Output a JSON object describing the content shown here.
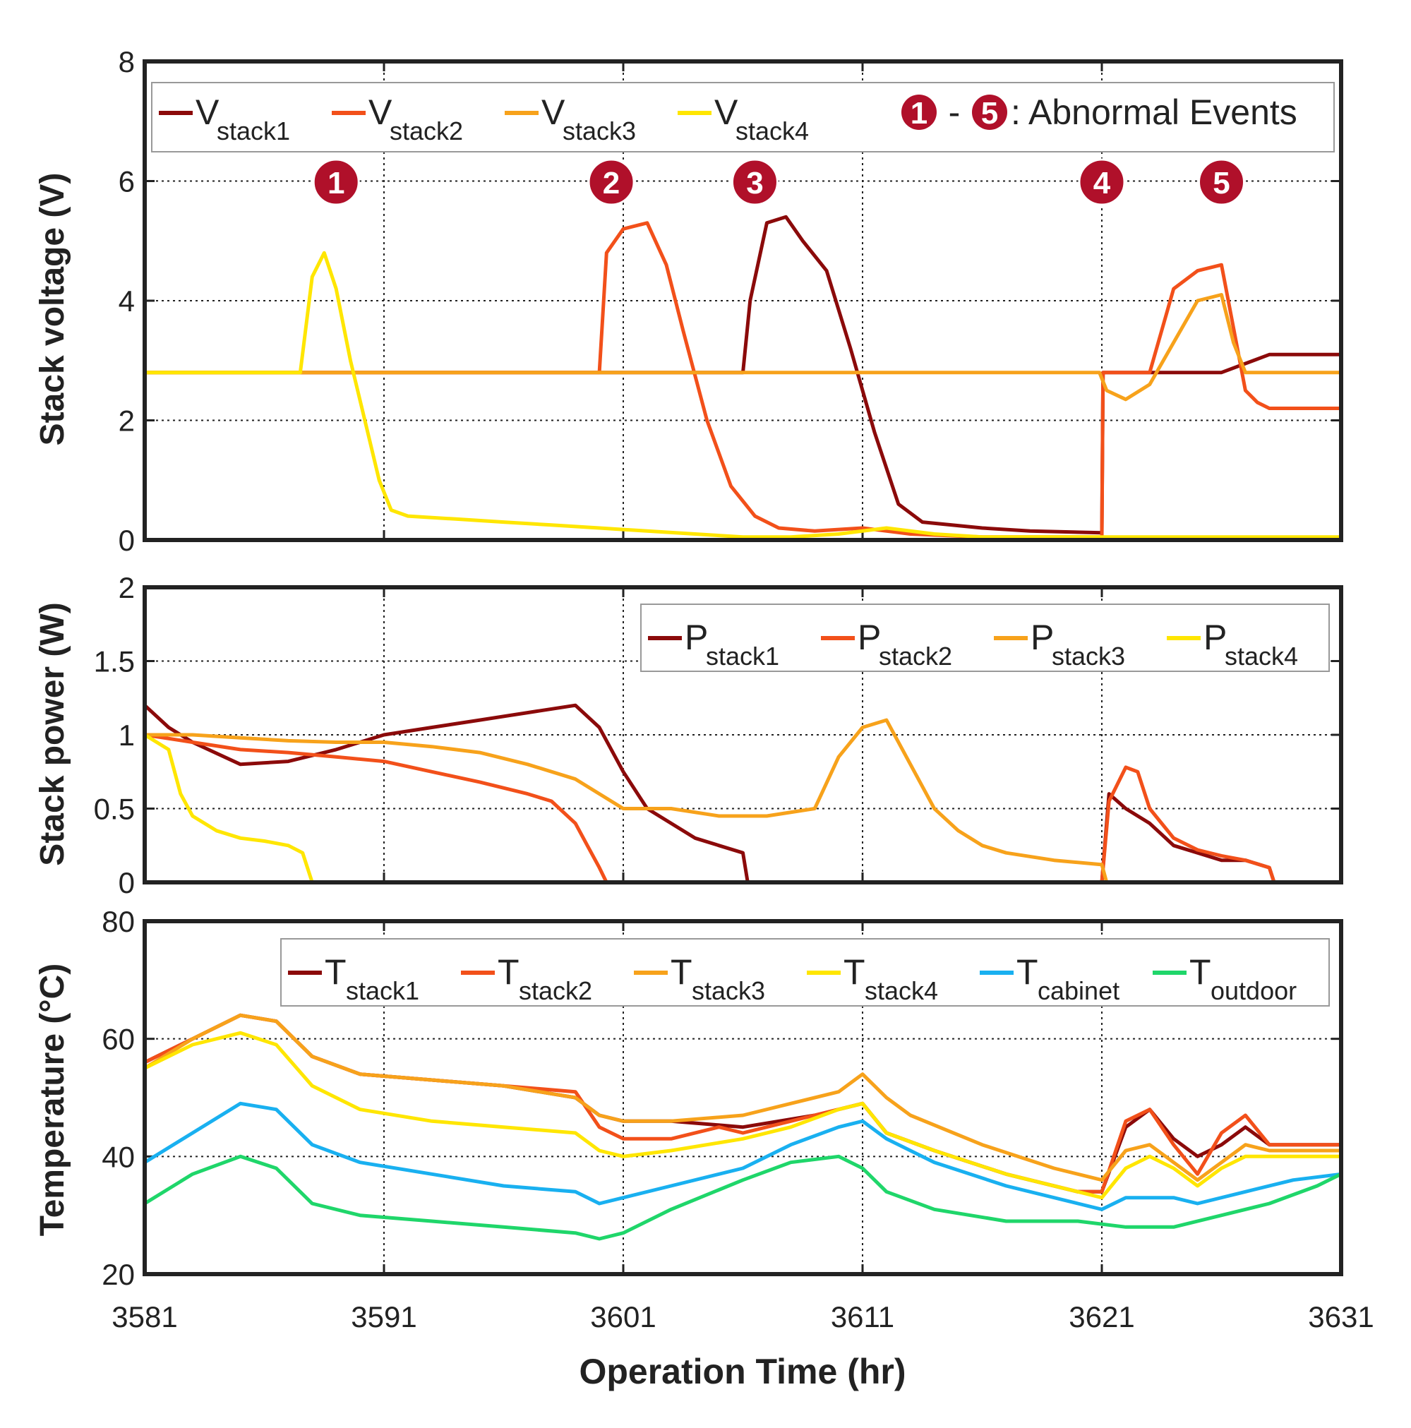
{
  "x_axis": {
    "label": "Operation Time (hr)",
    "range": [
      3581,
      3631
    ],
    "ticks": [
      "3581",
      "3591",
      "3601",
      "3611",
      "3621",
      "3631"
    ]
  },
  "colors": {
    "stack1": "#8b0a0a",
    "stack2": "#f2501a",
    "stack3": "#f7a21b",
    "stack4": "#ffe600",
    "cabinet": "#19b0f0",
    "outdoor": "#1fd66a",
    "event_badge": "#b0102a"
  },
  "events": {
    "legend_from": "1",
    "legend_dash": "-",
    "legend_to": "5",
    "legend_text": ": Abnormal Events",
    "items": [
      {
        "label": "1",
        "time": 3589
      },
      {
        "label": "2",
        "time": 3600.5
      },
      {
        "label": "3",
        "time": 3606.5
      },
      {
        "label": "4",
        "time": 3621
      },
      {
        "label": "5",
        "time": 3626
      }
    ]
  },
  "chart_data": [
    {
      "type": "line",
      "ylabel": "Stack voltage (V)",
      "ylim": [
        0,
        8
      ],
      "yticks": [
        "0",
        "2",
        "4",
        "6",
        "8"
      ],
      "legend": [
        {
          "main": "V",
          "sub": "stack1"
        },
        {
          "main": "V",
          "sub": "stack2"
        },
        {
          "main": "V",
          "sub": "stack3"
        },
        {
          "main": "V",
          "sub": "stack4"
        }
      ],
      "series": [
        {
          "name": "Vstack1",
          "color_key": "stack1",
          "x": [
            3581,
            3600,
            3606,
            3606.3,
            3607,
            3607.8,
            3608.5,
            3609.5,
            3610.5,
            3611.5,
            3612.5,
            3613.5,
            3616,
            3618,
            3621,
            3621.05,
            3626,
            3628,
            3628.1,
            3631
          ],
          "y": [
            2.8,
            2.8,
            2.8,
            4.0,
            5.3,
            5.4,
            5.0,
            4.5,
            3.2,
            1.8,
            0.6,
            0.3,
            0.2,
            0.15,
            0.12,
            2.8,
            2.8,
            3.1,
            3.1,
            3.1
          ]
        },
        {
          "name": "Vstack2",
          "color_key": "stack2",
          "x": [
            3581,
            3600,
            3600.3,
            3601,
            3602,
            3602.8,
            3603.5,
            3604.5,
            3605.5,
            3606.5,
            3607.5,
            3609,
            3611,
            3613,
            3616,
            3620.9,
            3621,
            3621.05,
            3622,
            3623,
            3624,
            3625,
            3626,
            3627,
            3627.5,
            3628,
            3628.2,
            3631
          ],
          "y": [
            2.8,
            2.8,
            4.8,
            5.2,
            5.3,
            4.6,
            3.5,
            2.0,
            0.9,
            0.4,
            0.2,
            0.15,
            0.2,
            0.1,
            0.05,
            0.05,
            0.0,
            2.8,
            2.8,
            2.8,
            4.2,
            4.5,
            4.6,
            2.5,
            2.3,
            2.2,
            2.2,
            2.2
          ]
        },
        {
          "name": "Vstack3",
          "color_key": "stack3",
          "x": [
            3581,
            3620.9,
            3621.2,
            3622,
            3623,
            3624,
            3625,
            3626,
            3626.5,
            3627,
            3628,
            3631
          ],
          "y": [
            2.8,
            2.8,
            2.5,
            2.35,
            2.6,
            3.3,
            4.0,
            4.1,
            3.3,
            2.8,
            2.8,
            2.8
          ]
        },
        {
          "name": "Vstack4",
          "color_key": "stack4",
          "x": [
            3581,
            3587.5,
            3588,
            3588.5,
            3589,
            3589.6,
            3590.2,
            3590.8,
            3591.3,
            3592,
            3594,
            3596,
            3598,
            3600,
            3602,
            3604,
            3606,
            3608,
            3610,
            3612,
            3614,
            3616,
            3631
          ],
          "y": [
            2.8,
            2.8,
            4.4,
            4.8,
            4.2,
            3.0,
            2.0,
            1.0,
            0.5,
            0.4,
            0.35,
            0.3,
            0.25,
            0.2,
            0.15,
            0.1,
            0.05,
            0.05,
            0.1,
            0.2,
            0.1,
            0.05,
            0.05
          ]
        }
      ]
    },
    {
      "type": "line",
      "ylabel": "Stack power (W)",
      "ylim": [
        0,
        2
      ],
      "yticks": [
        "0",
        "0.5",
        "1",
        "1.5",
        "2"
      ],
      "legend": [
        {
          "main": "P",
          "sub": "stack1"
        },
        {
          "main": "P",
          "sub": "stack2"
        },
        {
          "main": "P",
          "sub": "stack3"
        },
        {
          "main": "P",
          "sub": "stack4"
        }
      ],
      "series": [
        {
          "name": "Pstack1",
          "color_key": "stack1",
          "x": [
            3581,
            3582,
            3583,
            3585,
            3587,
            3589,
            3591,
            3593,
            3595,
            3597,
            3599,
            3600,
            3601,
            3602,
            3603,
            3604,
            3605,
            3606,
            3606.2,
            3621,
            3621.3,
            3622,
            3623,
            3624,
            3625,
            3626,
            3627,
            3628,
            3628.2,
            3631
          ],
          "y": [
            1.2,
            1.05,
            0.95,
            0.8,
            0.82,
            0.9,
            1.0,
            1.05,
            1.1,
            1.15,
            1.2,
            1.05,
            0.75,
            0.5,
            0.4,
            0.3,
            0.25,
            0.2,
            0.0,
            0.0,
            0.6,
            0.5,
            0.4,
            0.25,
            0.2,
            0.15,
            0.15,
            0.1,
            0.0,
            0.0
          ]
        },
        {
          "name": "Pstack2",
          "color_key": "stack2",
          "x": [
            3581,
            3583,
            3585,
            3587,
            3589,
            3591,
            3593,
            3595,
            3597,
            3598,
            3599,
            3599.5,
            3600,
            3600.3,
            3621,
            3621.3,
            3622,
            3622.5,
            3623,
            3624,
            3625,
            3626,
            3627,
            3628,
            3628.2,
            3631
          ],
          "y": [
            1.0,
            0.95,
            0.9,
            0.88,
            0.85,
            0.82,
            0.75,
            0.68,
            0.6,
            0.55,
            0.4,
            0.25,
            0.1,
            0.0,
            0.0,
            0.55,
            0.78,
            0.75,
            0.5,
            0.3,
            0.22,
            0.18,
            0.15,
            0.1,
            0.0,
            0.0
          ]
        },
        {
          "name": "Pstack3",
          "color_key": "stack3",
          "x": [
            3581,
            3583,
            3585,
            3587,
            3589,
            3591,
            3593,
            3595,
            3597,
            3599,
            3600,
            3601,
            3603,
            3605,
            3607,
            3609,
            3610,
            3611,
            3612,
            3613,
            3614,
            3615,
            3616,
            3617,
            3619,
            3621,
            3621.2,
            3631
          ],
          "y": [
            1.0,
            1.0,
            0.98,
            0.96,
            0.95,
            0.95,
            0.92,
            0.88,
            0.8,
            0.7,
            0.6,
            0.5,
            0.5,
            0.45,
            0.45,
            0.5,
            0.85,
            1.05,
            1.1,
            0.8,
            0.5,
            0.35,
            0.25,
            0.2,
            0.15,
            0.12,
            0.0,
            0.0
          ]
        },
        {
          "name": "Pstack4",
          "color_key": "stack4",
          "x": [
            3581,
            3582,
            3582.5,
            3583,
            3584,
            3585,
            3586,
            3587,
            3587.6,
            3588,
            3631
          ],
          "y": [
            1.0,
            0.9,
            0.6,
            0.45,
            0.35,
            0.3,
            0.28,
            0.25,
            0.2,
            0.0,
            0.0
          ]
        }
      ]
    },
    {
      "type": "line",
      "ylabel": "Temperature (°C)",
      "ylim": [
        20,
        80
      ],
      "yticks": [
        "20",
        "40",
        "60",
        "80"
      ],
      "legend": [
        {
          "main": "T",
          "sub": "stack1"
        },
        {
          "main": "T",
          "sub": "stack2"
        },
        {
          "main": "T",
          "sub": "stack3"
        },
        {
          "main": "T",
          "sub": "stack4"
        },
        {
          "main": "T",
          "sub": "cabinet"
        },
        {
          "main": "T",
          "sub": "outdoor"
        }
      ],
      "series": [
        {
          "name": "Tstack1",
          "color_key": "stack1",
          "x": [
            3581,
            3583,
            3585,
            3586.5,
            3588,
            3590,
            3593,
            3596,
            3599,
            3600,
            3601,
            3603,
            3606,
            3609,
            3611,
            3612,
            3614,
            3617,
            3620,
            3621,
            3622,
            3623,
            3624,
            3625,
            3626,
            3627,
            3628,
            3631
          ],
          "y": [
            56,
            60,
            64,
            63,
            57,
            54,
            53,
            52,
            50,
            47,
            46,
            46,
            45,
            47,
            49,
            44,
            41,
            37,
            34,
            34,
            45,
            48,
            43,
            40,
            42,
            45,
            42,
            42
          ]
        },
        {
          "name": "Tstack2",
          "color_key": "stack2",
          "x": [
            3581,
            3583,
            3585,
            3586.5,
            3588,
            3590,
            3593,
            3596,
            3599,
            3600,
            3601,
            3603,
            3605,
            3606,
            3608,
            3611,
            3612,
            3614,
            3617,
            3620,
            3621,
            3622,
            3623,
            3624,
            3625,
            3626,
            3627,
            3628,
            3631
          ],
          "y": [
            56,
            60,
            64,
            63,
            57,
            54,
            53,
            52,
            51,
            45,
            43,
            43,
            45,
            44,
            46,
            49,
            44,
            41,
            37,
            34,
            34,
            46,
            48,
            42,
            37,
            44,
            47,
            42,
            42
          ]
        },
        {
          "name": "Tstack3",
          "color_key": "stack3",
          "x": [
            3581,
            3583,
            3585,
            3586.5,
            3588,
            3590,
            3593,
            3596,
            3599,
            3600,
            3601,
            3603,
            3606,
            3608,
            3610,
            3611,
            3612,
            3613,
            3616,
            3619,
            3621,
            3622,
            3623,
            3624,
            3625,
            3626,
            3627,
            3628,
            3631
          ],
          "y": [
            55,
            60,
            64,
            63,
            57,
            54,
            53,
            52,
            50,
            47,
            46,
            46,
            47,
            49,
            51,
            54,
            50,
            47,
            42,
            38,
            36,
            41,
            42,
            39,
            36,
            39,
            42,
            41,
            41
          ]
        },
        {
          "name": "Tstack4",
          "color_key": "stack4",
          "x": [
            3581,
            3583,
            3585,
            3586.5,
            3588,
            3590,
            3593,
            3596,
            3599,
            3600,
            3601,
            3603,
            3606,
            3608,
            3610,
            3611,
            3612,
            3614,
            3617,
            3620,
            3621,
            3622,
            3623,
            3624,
            3625,
            3626,
            3627,
            3628,
            3631
          ],
          "y": [
            55,
            59,
            61,
            59,
            52,
            48,
            46,
            45,
            44,
            41,
            40,
            41,
            43,
            45,
            48,
            49,
            44,
            41,
            37,
            34,
            33,
            38,
            40,
            38,
            35,
            38,
            40,
            40,
            40
          ]
        },
        {
          "name": "Tcabinet",
          "color_key": "cabinet",
          "x": [
            3581,
            3583,
            3585,
            3586.5,
            3588,
            3590,
            3593,
            3596,
            3599,
            3600,
            3601,
            3603,
            3606,
            3608,
            3610,
            3611,
            3612,
            3614,
            3617,
            3620,
            3621,
            3622,
            3624,
            3625,
            3627,
            3629,
            3631
          ],
          "y": [
            39,
            44,
            49,
            48,
            42,
            39,
            37,
            35,
            34,
            32,
            33,
            35,
            38,
            42,
            45,
            46,
            43,
            39,
            35,
            32,
            31,
            33,
            33,
            32,
            34,
            36,
            37
          ]
        },
        {
          "name": "Toutdoor",
          "color_key": "outdoor",
          "x": [
            3581,
            3583,
            3585,
            3586.5,
            3588,
            3590,
            3593,
            3596,
            3599,
            3600,
            3601,
            3603,
            3606,
            3608,
            3610,
            3611,
            3612,
            3614,
            3617,
            3620,
            3622,
            3624,
            3626,
            3628,
            3630,
            3631
          ],
          "y": [
            32,
            37,
            40,
            38,
            32,
            30,
            29,
            28,
            27,
            26,
            27,
            31,
            36,
            39,
            40,
            38,
            34,
            31,
            29,
            29,
            28,
            28,
            30,
            32,
            35,
            37
          ]
        }
      ]
    }
  ]
}
